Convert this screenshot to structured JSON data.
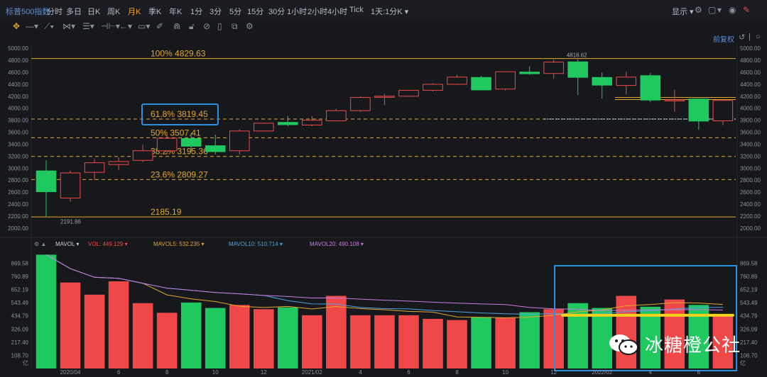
{
  "header": {
    "title": "标普500指数",
    "periods": [
      "分时",
      "多日",
      "日K",
      "周K",
      "月K",
      "季K",
      "年K",
      "1分",
      "3分",
      "5分",
      "15分",
      "30分",
      "1小时",
      "2小时",
      "4小时",
      "Tick",
      "1天:1分K ▾"
    ],
    "active_period": "月K",
    "right_label": "显示 ▾"
  },
  "toolbar": {
    "restore_label": "前复权"
  },
  "price_axis_ticks": [
    "5000.00",
    "4800.00",
    "4600.00",
    "4400.00",
    "4200.00",
    "4000.00",
    "3800.00",
    "3600.00",
    "3400.00",
    "3200.00",
    "3000.00",
    "2800.00",
    "2600.00",
    "2400.00",
    "2200.00",
    "2000.00"
  ],
  "fib_levels": [
    {
      "label": "100% 4829.63",
      "value": 4829.63,
      "color": "#e3a72f",
      "style": "solid"
    },
    {
      "label": "61.8% 3819.45",
      "value": 3819.45,
      "color": "#e3a72f",
      "style": "dashed"
    },
    {
      "label": "50% 3507.41",
      "value": 3507.41,
      "color": "#e3a72f",
      "style": "dashed"
    },
    {
      "label": "38.2% 3195.36",
      "value": 3195.36,
      "color": "#e3a72f",
      "style": "dashed"
    },
    {
      "label": "23.6% 2809.27",
      "value": 2809.27,
      "color": "#e3a72f",
      "style": "dashed"
    },
    {
      "label": "2185.19",
      "value": 2185.19,
      "color": "#e3a72f",
      "style": "solid"
    }
  ],
  "price_annotations": {
    "high": "4818.62",
    "low": "2191.86"
  },
  "chart_data": {
    "type": "candlestick",
    "ylim": [
      1950,
      5050
    ],
    "candles": [
      {
        "o": 2600,
        "c": 2960,
        "h": 3130,
        "l": 2192,
        "up": false
      },
      {
        "o": 2500,
        "c": 2920,
        "h": 2960,
        "l": 2440,
        "up": true
      },
      {
        "o": 2930,
        "c": 3090,
        "h": 3160,
        "l": 2800,
        "up": true
      },
      {
        "o": 3060,
        "c": 3110,
        "h": 3180,
        "l": 2970,
        "up": true
      },
      {
        "o": 3130,
        "c": 3290,
        "h": 3390,
        "l": 3100,
        "up": true
      },
      {
        "o": 3290,
        "c": 3500,
        "h": 3590,
        "l": 3230,
        "up": true
      },
      {
        "o": 3500,
        "c": 3360,
        "h": 3590,
        "l": 3260,
        "up": false
      },
      {
        "o": 3380,
        "c": 3270,
        "h": 3560,
        "l": 3230,
        "up": false
      },
      {
        "o": 3290,
        "c": 3620,
        "h": 3650,
        "l": 3230,
        "up": true
      },
      {
        "o": 3620,
        "c": 3750,
        "h": 3760,
        "l": 3620,
        "up": true
      },
      {
        "o": 3770,
        "c": 3720,
        "h": 3870,
        "l": 3700,
        "up": false
      },
      {
        "o": 3720,
        "c": 3800,
        "h": 3870,
        "l": 3700,
        "up": true
      },
      {
        "o": 3790,
        "c": 3960,
        "h": 3990,
        "l": 3780,
        "up": true
      },
      {
        "o": 3960,
        "c": 4180,
        "h": 4200,
        "l": 3940,
        "up": true
      },
      {
        "o": 4190,
        "c": 4200,
        "h": 4240,
        "l": 4050,
        "up": true
      },
      {
        "o": 4200,
        "c": 4300,
        "h": 4300,
        "l": 4200,
        "up": true
      },
      {
        "o": 4300,
        "c": 4400,
        "h": 4420,
        "l": 4280,
        "up": true
      },
      {
        "o": 4400,
        "c": 4520,
        "h": 4560,
        "l": 4390,
        "up": true
      },
      {
        "o": 4520,
        "c": 4300,
        "h": 4540,
        "l": 4300,
        "up": false
      },
      {
        "o": 4320,
        "c": 4610,
        "h": 4620,
        "l": 4300,
        "up": true
      },
      {
        "o": 4610,
        "c": 4570,
        "h": 4700,
        "l": 4560,
        "up": false
      },
      {
        "o": 4580,
        "c": 4770,
        "h": 4810,
        "l": 4490,
        "up": true
      },
      {
        "o": 4780,
        "c": 4510,
        "h": 4819,
        "l": 4220,
        "up": false
      },
      {
        "o": 4520,
        "c": 4380,
        "h": 4600,
        "l": 4160,
        "up": false
      },
      {
        "o": 4520,
        "c": 4380,
        "h": 4610,
        "l": 4230,
        "up": true
      },
      {
        "o": 4550,
        "c": 4130,
        "h": 4590,
        "l": 4100,
        "up": false
      },
      {
        "o": 4130,
        "c": 4140,
        "h": 4310,
        "l": 3940,
        "up": true
      },
      {
        "o": 4160,
        "c": 3780,
        "h": 4160,
        "l": 3640,
        "up": false
      },
      {
        "o": 3790,
        "c": 4130,
        "h": 4150,
        "l": 3720,
        "up": true
      }
    ],
    "volume": {
      "ylim": [
        0,
        960
      ],
      "values": [
        940,
        710,
        610,
        720,
        540,
        460,
        545,
        500,
        525,
        490,
        505,
        440,
        600,
        440,
        440,
        440,
        410,
        400,
        425,
        420,
        465,
        490,
        540,
        500,
        600,
        510,
        570,
        525,
        440
      ],
      "up": [
        false,
        true,
        true,
        true,
        true,
        true,
        false,
        false,
        true,
        true,
        false,
        true,
        true,
        true,
        true,
        true,
        true,
        true,
        false,
        true,
        false,
        true,
        false,
        false,
        true,
        false,
        true,
        false,
        true
      ],
      "ticks": [
        "869.58",
        "760.89",
        "652.19",
        "543.49",
        "434.79",
        "326.09",
        "217.40",
        "108.70",
        "亿"
      ],
      "indicator": "MAVOL",
      "legend": [
        {
          "label": "VOL: 449.129 ▾",
          "color": "#e84a4a"
        },
        {
          "label": "MAVOL5: 532.235 ▾",
          "color": "#e3a72f"
        },
        {
          "label": "MAVOL10: 510.714 ▾",
          "color": "#4aa3e0"
        },
        {
          "label": "MAVOL20: 490.108 ▾",
          "color": "#c77ae0"
        }
      ],
      "highlight_line_value": 440
    },
    "x_ticks": [
      {
        "i": 1.5,
        "label": "2020/04"
      },
      {
        "i": 3.5,
        "label": "6"
      },
      {
        "i": 5.5,
        "label": "8"
      },
      {
        "i": 7.5,
        "label": "10"
      },
      {
        "i": 9.5,
        "label": "12"
      },
      {
        "i": 11.5,
        "label": "2021/02"
      },
      {
        "i": 13.5,
        "label": "4"
      },
      {
        "i": 15.5,
        "label": "6"
      },
      {
        "i": 17.5,
        "label": "8"
      },
      {
        "i": 19.5,
        "label": "10"
      },
      {
        "i": 21.5,
        "label": "12"
      },
      {
        "i": 23.5,
        "label": "2022/02"
      },
      {
        "i": 25.5,
        "label": "4"
      },
      {
        "i": 27.5,
        "label": "6"
      }
    ]
  },
  "colors": {
    "up": "#f04848",
    "down": "#1fc95f",
    "highlight": "#2b8fe0",
    "yellow": "#f3d21c"
  },
  "watermark": {
    "text": "冰糖橙公社",
    "icon": "wechat-icon"
  }
}
